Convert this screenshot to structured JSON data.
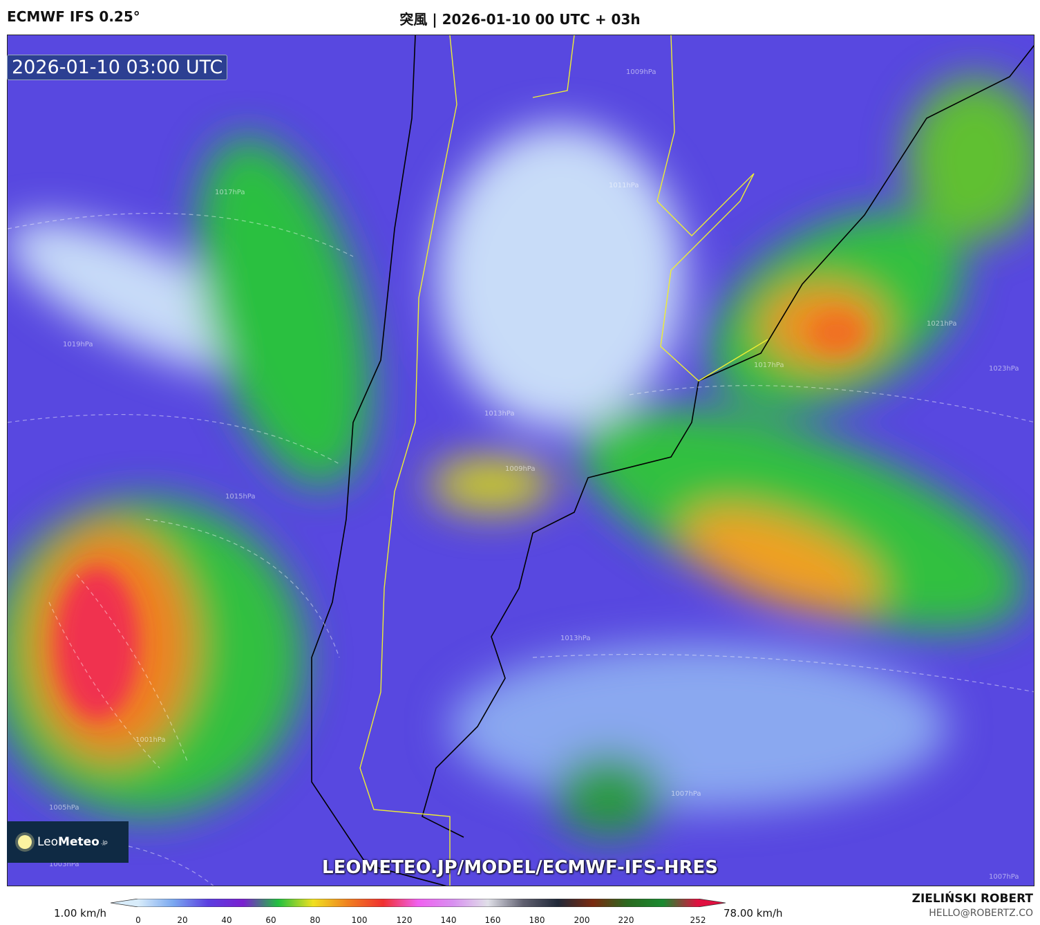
{
  "header": {
    "model": "ECMWF IFS 0.25°",
    "title": "突風 | 2026-01-10 00 UTC + 03h"
  },
  "map": {
    "timestamp": "2026-01-10 03:00 UTC",
    "url": "LEOMETEO.JP/MODEL/ECMWF-IFS-HRES",
    "logo": {
      "text_light": "Leo",
      "text_bold": "Meteo",
      "suffix": ".jp",
      "icon": "sun-icon"
    },
    "isobar_labels": [
      "1009hPa",
      "1011hPa",
      "1013hPa",
      "1013hPa",
      "1015hPa",
      "1017hPa",
      "1017hPa",
      "1019hPa",
      "1021hPa",
      "1023hPa",
      "1001hPa",
      "1005hPa",
      "1003hPa",
      "1007hPa",
      "1007hPa",
      "1009hPa"
    ]
  },
  "colorbar": {
    "min_label": "1.00 km/h",
    "max_label": "78.00 km/h",
    "ticks": [
      "0",
      "20",
      "40",
      "60",
      "80",
      "100",
      "120",
      "140",
      "160",
      "180",
      "200",
      "220",
      "252"
    ],
    "colors": [
      "#d8ecfa",
      "#7aa8f0",
      "#5b3ee0",
      "#7a20d0",
      "#22c040",
      "#f0e020",
      "#f08020",
      "#f03030",
      "#f060f0",
      "#d890f0",
      "#e0e0e8",
      "#606070",
      "#202838",
      "#7a2a10",
      "#2a6a20",
      "#1a8a30",
      "#e01040"
    ]
  },
  "footer": {
    "author": "ZIELIŃSKI ROBERT",
    "email": "HELLO@ROBERTZ.CO"
  }
}
